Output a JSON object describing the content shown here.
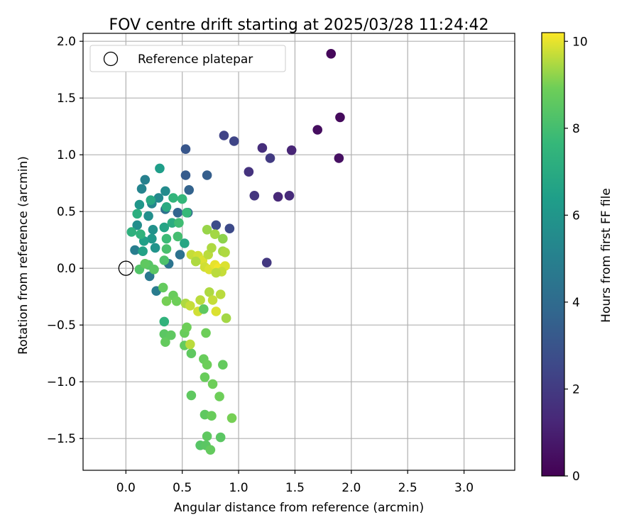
{
  "chart_data": {
    "type": "scatter",
    "title": "FOV centre drift starting at 2025/03/28 11:24:42",
    "xlabel": "Angular distance from reference (arcmin)",
    "ylabel": "Rotation from reference (arcmin)",
    "xlim": [
      -0.38,
      3.45
    ],
    "ylim": [
      -1.78,
      2.07
    ],
    "xticks": [
      0.0,
      0.5,
      1.0,
      1.5,
      2.0,
      2.5,
      3.0
    ],
    "xtick_labels": [
      "0.0",
      "0.5",
      "1.0",
      "1.5",
      "2.0",
      "2.5",
      "3.0"
    ],
    "yticks": [
      -1.5,
      -1.0,
      -0.5,
      0.0,
      0.5,
      1.0,
      1.5,
      2.0
    ],
    "ytick_labels": [
      "−1.5",
      "−1.0",
      "−0.5",
      "0.0",
      "0.5",
      "1.0",
      "1.5",
      "2.0"
    ],
    "grid": true,
    "legend": {
      "position": "top-left",
      "label": "Reference platepar"
    },
    "reference_point": {
      "x": 0.0,
      "y": 0.0
    },
    "colorbar": {
      "label": "Hours from first FF file",
      "colormap": "viridis",
      "range": [
        0,
        10.2
      ],
      "ticks": [
        0,
        2,
        4,
        6,
        8,
        10
      ],
      "tick_labels": [
        "0",
        "2",
        "4",
        "6",
        "8",
        "10"
      ]
    },
    "points": [
      {
        "x": 1.82,
        "y": 1.89,
        "h": 0.2
      },
      {
        "x": 1.9,
        "y": 1.33,
        "h": 0.3
      },
      {
        "x": 1.7,
        "y": 1.22,
        "h": 0.4
      },
      {
        "x": 1.89,
        "y": 0.97,
        "h": 0.5
      },
      {
        "x": 1.47,
        "y": 1.04,
        "h": 1.2
      },
      {
        "x": 1.35,
        "y": 0.63,
        "h": 1.3
      },
      {
        "x": 1.45,
        "y": 0.64,
        "h": 1.4
      },
      {
        "x": 1.21,
        "y": 1.06,
        "h": 1.5
      },
      {
        "x": 1.09,
        "y": 0.85,
        "h": 1.7
      },
      {
        "x": 1.14,
        "y": 0.64,
        "h": 1.8
      },
      {
        "x": 1.28,
        "y": 0.97,
        "h": 2.0
      },
      {
        "x": 1.25,
        "y": 0.05,
        "h": 1.9
      },
      {
        "x": 0.87,
        "y": 1.17,
        "h": 2.3
      },
      {
        "x": 0.96,
        "y": 1.12,
        "h": 2.4
      },
      {
        "x": 0.92,
        "y": 0.35,
        "h": 2.6
      },
      {
        "x": 0.8,
        "y": 0.38,
        "h": 2.7
      },
      {
        "x": 0.53,
        "y": 1.05,
        "h": 3.1
      },
      {
        "x": 0.53,
        "y": 0.82,
        "h": 3.3
      },
      {
        "x": 0.72,
        "y": 0.82,
        "h": 3.4
      },
      {
        "x": 0.56,
        "y": 0.69,
        "h": 3.6
      },
      {
        "x": 0.46,
        "y": 0.49,
        "h": 3.7
      },
      {
        "x": 0.55,
        "y": 0.49,
        "h": 3.9
      },
      {
        "x": 0.35,
        "y": 0.52,
        "h": 4.2
      },
      {
        "x": 0.48,
        "y": 0.12,
        "h": 4.3
      },
      {
        "x": 0.38,
        "y": 0.04,
        "h": 4.4
      },
      {
        "x": 0.21,
        "y": -0.07,
        "h": 4.6
      },
      {
        "x": 0.27,
        "y": -0.2,
        "h": 4.8
      },
      {
        "x": 0.08,
        "y": 0.16,
        "h": 4.9
      },
      {
        "x": 0.17,
        "y": 0.78,
        "h": 5.0
      },
      {
        "x": 0.14,
        "y": 0.7,
        "h": 5.2
      },
      {
        "x": 0.23,
        "y": 0.57,
        "h": 5.3
      },
      {
        "x": 0.29,
        "y": 0.62,
        "h": 5.4
      },
      {
        "x": 0.35,
        "y": 0.68,
        "h": 5.5
      },
      {
        "x": 0.1,
        "y": 0.38,
        "h": 5.6
      },
      {
        "x": 0.2,
        "y": 0.46,
        "h": 5.7
      },
      {
        "x": 0.24,
        "y": 0.34,
        "h": 5.8
      },
      {
        "x": 0.26,
        "y": 0.18,
        "h": 5.9
      },
      {
        "x": 0.12,
        "y": 0.56,
        "h": 6.0
      },
      {
        "x": 0.23,
        "y": 0.26,
        "h": 6.1
      },
      {
        "x": 0.3,
        "y": 0.88,
        "h": 6.4
      },
      {
        "x": 0.16,
        "y": 0.24,
        "h": 6.5
      },
      {
        "x": 0.15,
        "y": 0.15,
        "h": 6.6
      },
      {
        "x": 0.34,
        "y": 0.36,
        "h": 6.7
      },
      {
        "x": 0.52,
        "y": 0.22,
        "h": 6.8
      },
      {
        "x": 0.22,
        "y": 0.6,
        "h": 6.9
      },
      {
        "x": 0.36,
        "y": 0.54,
        "h": 7.0
      },
      {
        "x": 0.41,
        "y": 0.4,
        "h": 7.1
      },
      {
        "x": 0.1,
        "y": 0.48,
        "h": 7.2
      },
      {
        "x": 0.05,
        "y": 0.32,
        "h": 7.3
      },
      {
        "x": 0.13,
        "y": 0.3,
        "h": 7.4
      },
      {
        "x": 0.42,
        "y": 0.62,
        "h": 7.5
      },
      {
        "x": 0.5,
        "y": 0.61,
        "h": 7.6
      },
      {
        "x": 0.54,
        "y": 0.49,
        "h": 7.7
      },
      {
        "x": 0.36,
        "y": 0.26,
        "h": 7.8
      },
      {
        "x": 0.47,
        "y": 0.4,
        "h": 7.9
      },
      {
        "x": 0.46,
        "y": 0.28,
        "h": 8.0
      },
      {
        "x": 0.36,
        "y": 0.17,
        "h": 8.1
      },
      {
        "x": 0.34,
        "y": 0.07,
        "h": 8.2
      },
      {
        "x": 0.12,
        "y": -0.01,
        "h": 8.3
      },
      {
        "x": 0.2,
        "y": 0.03,
        "h": 8.4
      },
      {
        "x": 0.25,
        "y": -0.01,
        "h": 8.5
      },
      {
        "x": 0.17,
        "y": 0.04,
        "h": 8.6
      },
      {
        "x": 0.33,
        "y": -0.17,
        "h": 8.7
      },
      {
        "x": 0.42,
        "y": -0.24,
        "h": 8.8
      },
      {
        "x": 0.45,
        "y": -0.29,
        "h": 8.9
      },
      {
        "x": 0.36,
        "y": -0.29,
        "h": 9.0
      },
      {
        "x": 0.34,
        "y": -0.47,
        "h": 7.4
      },
      {
        "x": 0.34,
        "y": -0.58,
        "h": 8.5
      },
      {
        "x": 0.35,
        "y": -0.65,
        "h": 8.7
      },
      {
        "x": 0.4,
        "y": -0.59,
        "h": 8.6
      },
      {
        "x": 0.52,
        "y": -0.57,
        "h": 8.8
      },
      {
        "x": 0.54,
        "y": -0.52,
        "h": 8.9
      },
      {
        "x": 0.52,
        "y": -0.68,
        "h": 8.7
      },
      {
        "x": 0.58,
        "y": -0.75,
        "h": 8.6
      },
      {
        "x": 0.69,
        "y": -0.8,
        "h": 8.8
      },
      {
        "x": 0.72,
        "y": -0.85,
        "h": 8.9
      },
      {
        "x": 0.86,
        "y": -0.85,
        "h": 8.7
      },
      {
        "x": 0.71,
        "y": -0.57,
        "h": 8.9
      },
      {
        "x": 0.7,
        "y": -0.96,
        "h": 8.8
      },
      {
        "x": 0.77,
        "y": -1.02,
        "h": 8.9
      },
      {
        "x": 0.58,
        "y": -1.12,
        "h": 8.6
      },
      {
        "x": 0.83,
        "y": -1.13,
        "h": 8.9
      },
      {
        "x": 0.7,
        "y": -1.29,
        "h": 8.6
      },
      {
        "x": 0.76,
        "y": -1.3,
        "h": 8.8
      },
      {
        "x": 0.94,
        "y": -1.32,
        "h": 9.0
      },
      {
        "x": 0.84,
        "y": -1.49,
        "h": 8.5
      },
      {
        "x": 0.72,
        "y": -1.48,
        "h": 8.6
      },
      {
        "x": 0.66,
        "y": -1.56,
        "h": 8.4
      },
      {
        "x": 0.71,
        "y": -1.56,
        "h": 8.5
      },
      {
        "x": 0.75,
        "y": -1.6,
        "h": 8.7
      },
      {
        "x": 0.57,
        "y": -0.67,
        "h": 9.6
      },
      {
        "x": 0.53,
        "y": -0.31,
        "h": 9.5
      },
      {
        "x": 0.57,
        "y": -0.33,
        "h": 9.7
      },
      {
        "x": 0.64,
        "y": -0.38,
        "h": 9.8
      },
      {
        "x": 0.66,
        "y": -0.28,
        "h": 9.6
      },
      {
        "x": 0.74,
        "y": -0.21,
        "h": 9.5
      },
      {
        "x": 0.77,
        "y": -0.28,
        "h": 9.7
      },
      {
        "x": 0.84,
        "y": -0.23,
        "h": 9.6
      },
      {
        "x": 0.8,
        "y": -0.38,
        "h": 9.9
      },
      {
        "x": 0.89,
        "y": -0.44,
        "h": 9.4
      },
      {
        "x": 0.69,
        "y": -0.36,
        "h": 8.6
      },
      {
        "x": 0.58,
        "y": 0.12,
        "h": 9.7
      },
      {
        "x": 0.64,
        "y": 0.11,
        "h": 9.8
      },
      {
        "x": 0.68,
        "y": 0.07,
        "h": 9.9
      },
      {
        "x": 0.73,
        "y": 0.12,
        "h": 9.6
      },
      {
        "x": 0.76,
        "y": 0.18,
        "h": 9.5
      },
      {
        "x": 0.79,
        "y": 0.3,
        "h": 9.4
      },
      {
        "x": 0.72,
        "y": 0.34,
        "h": 9.3
      },
      {
        "x": 0.86,
        "y": 0.26,
        "h": 9.2
      },
      {
        "x": 0.86,
        "y": 0.15,
        "h": 9.4
      },
      {
        "x": 0.88,
        "y": 0.14,
        "h": 9.5
      },
      {
        "x": 0.7,
        "y": 0.01,
        "h": 9.8
      },
      {
        "x": 0.74,
        "y": -0.01,
        "h": 9.9
      },
      {
        "x": 0.79,
        "y": 0.03,
        "h": 10.0
      },
      {
        "x": 0.82,
        "y": 0.0,
        "h": 10.1
      },
      {
        "x": 0.88,
        "y": 0.02,
        "h": 9.9
      },
      {
        "x": 0.85,
        "y": -0.03,
        "h": 9.7
      },
      {
        "x": 0.8,
        "y": -0.04,
        "h": 9.6
      },
      {
        "x": 0.62,
        "y": 0.06,
        "h": 9.5
      }
    ]
  },
  "colors": {
    "axes": "#000000",
    "grid": "#b0b0b0",
    "legend_border": "#cccccc"
  }
}
